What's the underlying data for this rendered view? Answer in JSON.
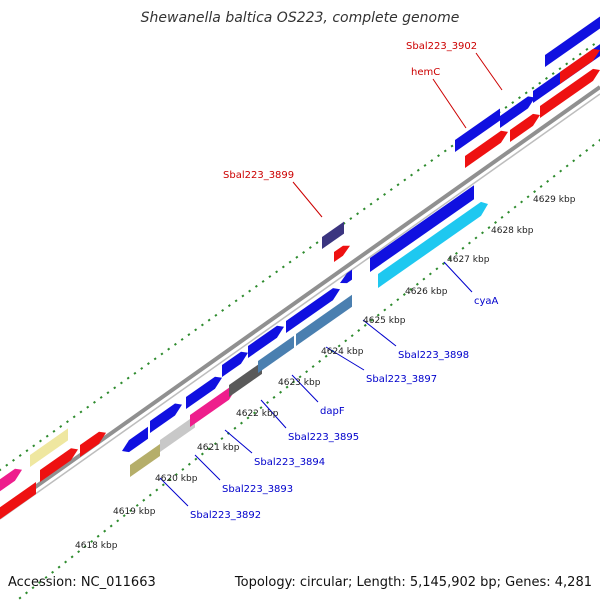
{
  "title": "Shewanella baltica OS223, complete genome",
  "footer": {
    "accession": "Accession: NC_011663",
    "summary": "Topology: circular; Length: 5,145,902 bp; Genes: 4,281"
  },
  "colors": {
    "background": "#ffffff",
    "backbone": "#909090",
    "ruler_dots": "#2e8b2e",
    "gene_blue": "#1010e0",
    "gene_red": "#ee1111",
    "gene_cyan": "#1ec8f0",
    "gene_steel": "#4a7fb0",
    "gene_grey": "#5a5a5a",
    "gene_lightgrey": "#c8c8c8",
    "gene_magenta": "#ee1e8c",
    "gene_olive": "#b5ae6a",
    "gene_khaki": "#efe7a0",
    "gene_navy": "#3b3580",
    "label_blue": "#0000cc",
    "label_red": "#cc0000"
  },
  "ticks": [
    {
      "label": "4618 kbp",
      "value": 4618
    },
    {
      "label": "4619 kbp",
      "value": 4619
    },
    {
      "label": "4620 kbp",
      "value": 4620
    },
    {
      "label": "4621 kbp",
      "value": 4621
    },
    {
      "label": "4622 kbp",
      "value": 4622
    },
    {
      "label": "4623 kbp",
      "value": 4623
    },
    {
      "label": "4624 kbp",
      "value": 4624
    },
    {
      "label": "4625 kbp",
      "value": 4625
    },
    {
      "label": "4626 kbp",
      "value": 4626
    },
    {
      "label": "4627 kbp",
      "value": 4627
    },
    {
      "label": "4628 kbp",
      "value": 4628
    },
    {
      "label": "4629 kbp",
      "value": 4629
    }
  ],
  "gene_labels": [
    {
      "text": "Sbal223_3892",
      "strand": "plus"
    },
    {
      "text": "Sbal223_3893",
      "strand": "plus"
    },
    {
      "text": "Sbal223_3894",
      "strand": "plus"
    },
    {
      "text": "Sbal223_3895",
      "strand": "plus"
    },
    {
      "text": "dapF",
      "strand": "plus"
    },
    {
      "text": "Sbal223_3897",
      "strand": "plus"
    },
    {
      "text": "Sbal223_3898",
      "strand": "plus"
    },
    {
      "text": "cyaA",
      "strand": "plus"
    },
    {
      "text": "Sbal223_3899",
      "strand": "minus"
    },
    {
      "text": "hemC",
      "strand": "minus"
    },
    {
      "text": "Sbal223_3902",
      "strand": "minus"
    }
  ]
}
